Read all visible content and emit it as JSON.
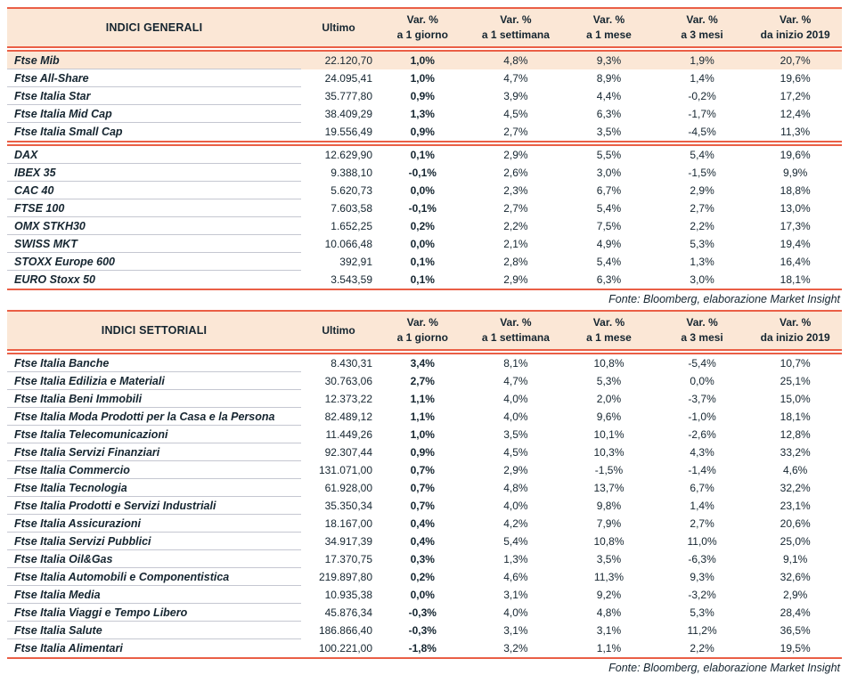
{
  "colors": {
    "accent_red": "#ea5f46",
    "header_bg": "#fbe7d6",
    "text": "#152530",
    "row_divider": "#c5c7d1",
    "highlight_row_bg": "#fbe7d6"
  },
  "columns": {
    "ultimo": "Ultimo",
    "var": "Var. %",
    "periods": [
      "a 1 giorno",
      "a 1 settimana",
      "a 1 mese",
      "a 3 mesi",
      "da inizio 2019"
    ]
  },
  "tables": [
    {
      "title": "INDICI GENERALI",
      "fonte": "Fonte: Bloomberg, elaborazione Market Insight",
      "groups": [
        [
          {
            "name": "Ftse Mib",
            "ultimo": "22.120,70",
            "vars": [
              "1,0%",
              "4,8%",
              "9,3%",
              "1,9%",
              "20,7%"
            ],
            "highlight": true
          },
          {
            "name": "Ftse All-Share",
            "ultimo": "24.095,41",
            "vars": [
              "1,0%",
              "4,7%",
              "8,9%",
              "1,4%",
              "19,6%"
            ]
          },
          {
            "name": "Ftse Italia Star",
            "ultimo": "35.777,80",
            "vars": [
              "0,9%",
              "3,9%",
              "4,4%",
              "-0,2%",
              "17,2%"
            ]
          },
          {
            "name": "Ftse Italia Mid Cap",
            "ultimo": "38.409,29",
            "vars": [
              "1,3%",
              "4,5%",
              "6,3%",
              "-1,7%",
              "12,4%"
            ]
          },
          {
            "name": "Ftse Italia Small Cap",
            "ultimo": "19.556,49",
            "vars": [
              "0,9%",
              "2,7%",
              "3,5%",
              "-4,5%",
              "11,3%"
            ]
          }
        ],
        [
          {
            "name": "DAX",
            "ultimo": "12.629,90",
            "vars": [
              "0,1%",
              "2,9%",
              "5,5%",
              "5,4%",
              "19,6%"
            ]
          },
          {
            "name": "IBEX 35",
            "ultimo": "9.388,10",
            "vars": [
              "-0,1%",
              "2,6%",
              "3,0%",
              "-1,5%",
              "9,9%"
            ]
          },
          {
            "name": "CAC 40",
            "ultimo": "5.620,73",
            "vars": [
              "0,0%",
              "2,3%",
              "6,7%",
              "2,9%",
              "18,8%"
            ]
          },
          {
            "name": "FTSE 100",
            "ultimo": "7.603,58",
            "vars": [
              "-0,1%",
              "2,7%",
              "5,4%",
              "2,7%",
              "13,0%"
            ]
          },
          {
            "name": "OMX STKH30",
            "ultimo": "1.652,25",
            "vars": [
              "0,2%",
              "2,2%",
              "7,5%",
              "2,2%",
              "17,3%"
            ]
          },
          {
            "name": "SWISS MKT",
            "ultimo": "10.066,48",
            "vars": [
              "0,0%",
              "2,1%",
              "4,9%",
              "5,3%",
              "19,4%"
            ]
          },
          {
            "name": "STOXX Europe 600",
            "ultimo": "392,91",
            "vars": [
              "0,1%",
              "2,8%",
              "5,4%",
              "1,3%",
              "16,4%"
            ]
          },
          {
            "name": "EURO Stoxx 50",
            "ultimo": "3.543,59",
            "vars": [
              "0,1%",
              "2,9%",
              "6,3%",
              "3,0%",
              "18,1%"
            ]
          }
        ]
      ]
    },
    {
      "title": "INDICI SETTORIALI",
      "fonte": "Fonte: Bloomberg, elaborazione Market Insight",
      "groups": [
        [
          {
            "name": "Ftse Italia Banche",
            "ultimo": "8.430,31",
            "vars": [
              "3,4%",
              "8,1%",
              "10,8%",
              "-5,4%",
              "10,7%"
            ]
          },
          {
            "name": "Ftse Italia Edilizia e Materiali",
            "ultimo": "30.763,06",
            "vars": [
              "2,7%",
              "4,7%",
              "5,3%",
              "0,0%",
              "25,1%"
            ]
          },
          {
            "name": "Ftse Italia Beni Immobili",
            "ultimo": "12.373,22",
            "vars": [
              "1,1%",
              "4,0%",
              "2,0%",
              "-3,7%",
              "15,0%"
            ]
          },
          {
            "name": "Ftse Italia Moda Prodotti per la Casa e la Persona",
            "ultimo": "82.489,12",
            "vars": [
              "1,1%",
              "4,0%",
              "9,6%",
              "-1,0%",
              "18,1%"
            ]
          },
          {
            "name": "Ftse Italia Telecomunicazioni",
            "ultimo": "11.449,26",
            "vars": [
              "1,0%",
              "3,5%",
              "10,1%",
              "-2,6%",
              "12,8%"
            ]
          },
          {
            "name": "Ftse Italia Servizi Finanziari",
            "ultimo": "92.307,44",
            "vars": [
              "0,9%",
              "4,5%",
              "10,3%",
              "4,3%",
              "33,2%"
            ]
          },
          {
            "name": "Ftse Italia Commercio",
            "ultimo": "131.071,00",
            "vars": [
              "0,7%",
              "2,9%",
              "-1,5%",
              "-1,4%",
              "4,6%"
            ]
          },
          {
            "name": "Ftse Italia Tecnologia",
            "ultimo": "61.928,00",
            "vars": [
              "0,7%",
              "4,8%",
              "13,7%",
              "6,7%",
              "32,2%"
            ]
          },
          {
            "name": "Ftse Italia Prodotti e Servizi Industriali",
            "ultimo": "35.350,34",
            "vars": [
              "0,7%",
              "4,0%",
              "9,8%",
              "1,4%",
              "23,1%"
            ]
          },
          {
            "name": "Ftse Italia Assicurazioni",
            "ultimo": "18.167,00",
            "vars": [
              "0,4%",
              "4,2%",
              "7,9%",
              "2,7%",
              "20,6%"
            ]
          },
          {
            "name": "Ftse Italia Servizi Pubblici",
            "ultimo": "34.917,39",
            "vars": [
              "0,4%",
              "5,4%",
              "10,8%",
              "11,0%",
              "25,0%"
            ]
          },
          {
            "name": "Ftse Italia Oil&Gas",
            "ultimo": "17.370,75",
            "vars": [
              "0,3%",
              "1,3%",
              "3,5%",
              "-6,3%",
              "9,1%"
            ]
          },
          {
            "name": "Ftse Italia Automobili e Componentistica",
            "ultimo": "219.897,80",
            "vars": [
              "0,2%",
              "4,6%",
              "11,3%",
              "9,3%",
              "32,6%"
            ]
          },
          {
            "name": "Ftse Italia Media",
            "ultimo": "10.935,38",
            "vars": [
              "0,0%",
              "3,1%",
              "9,2%",
              "-3,2%",
              "2,9%"
            ]
          },
          {
            "name": "Ftse Italia Viaggi e Tempo Libero",
            "ultimo": "45.876,34",
            "vars": [
              "-0,3%",
              "4,0%",
              "4,8%",
              "5,3%",
              "28,4%"
            ]
          },
          {
            "name": "Ftse Italia Salute",
            "ultimo": "186.866,40",
            "vars": [
              "-0,3%",
              "3,1%",
              "3,1%",
              "11,2%",
              "36,5%"
            ]
          },
          {
            "name": "Ftse Italia Alimentari",
            "ultimo": "100.221,00",
            "vars": [
              "-1,8%",
              "3,2%",
              "1,1%",
              "2,2%",
              "19,5%"
            ]
          }
        ]
      ]
    }
  ]
}
